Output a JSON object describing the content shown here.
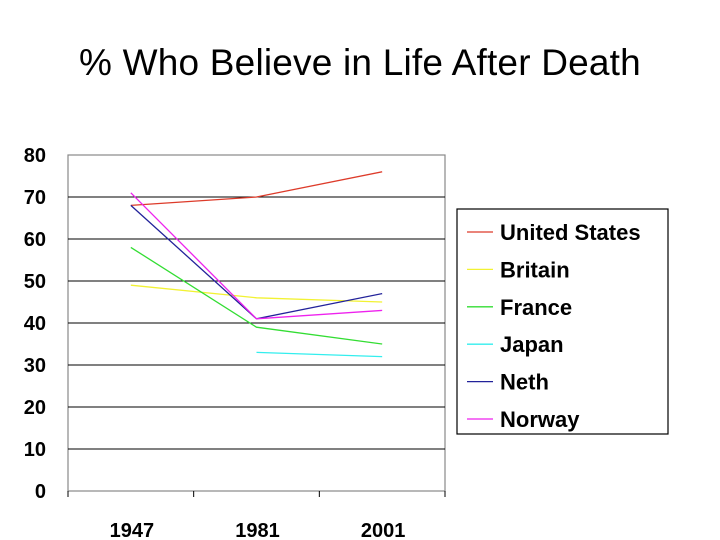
{
  "title": "% Who Believe in Life After Death",
  "chart_data": {
    "type": "line",
    "title": "% Who Believe in Life After Death",
    "categories": [
      "1947",
      "1981",
      "2001"
    ],
    "ylim": [
      0,
      80
    ],
    "yticks": [
      0,
      10,
      20,
      30,
      40,
      50,
      60,
      70,
      80
    ],
    "grid": "horizontal",
    "legend_position": "right",
    "series": [
      {
        "name": "United States",
        "color": "#dd3b2a",
        "values": [
          68,
          70,
          76
        ]
      },
      {
        "name": "Britain",
        "color": "#f2f233",
        "values": [
          49,
          46,
          45
        ]
      },
      {
        "name": "France",
        "color": "#33dd33",
        "values": [
          58,
          39,
          35
        ]
      },
      {
        "name": "Japan",
        "color": "#33eeee",
        "values": [
          null,
          33,
          32
        ]
      },
      {
        "name": "Neth",
        "color": "#22229a",
        "values": [
          68,
          41,
          47
        ]
      },
      {
        "name": "Norway",
        "color": "#ee22ee",
        "values": [
          71,
          41,
          43
        ]
      }
    ]
  }
}
